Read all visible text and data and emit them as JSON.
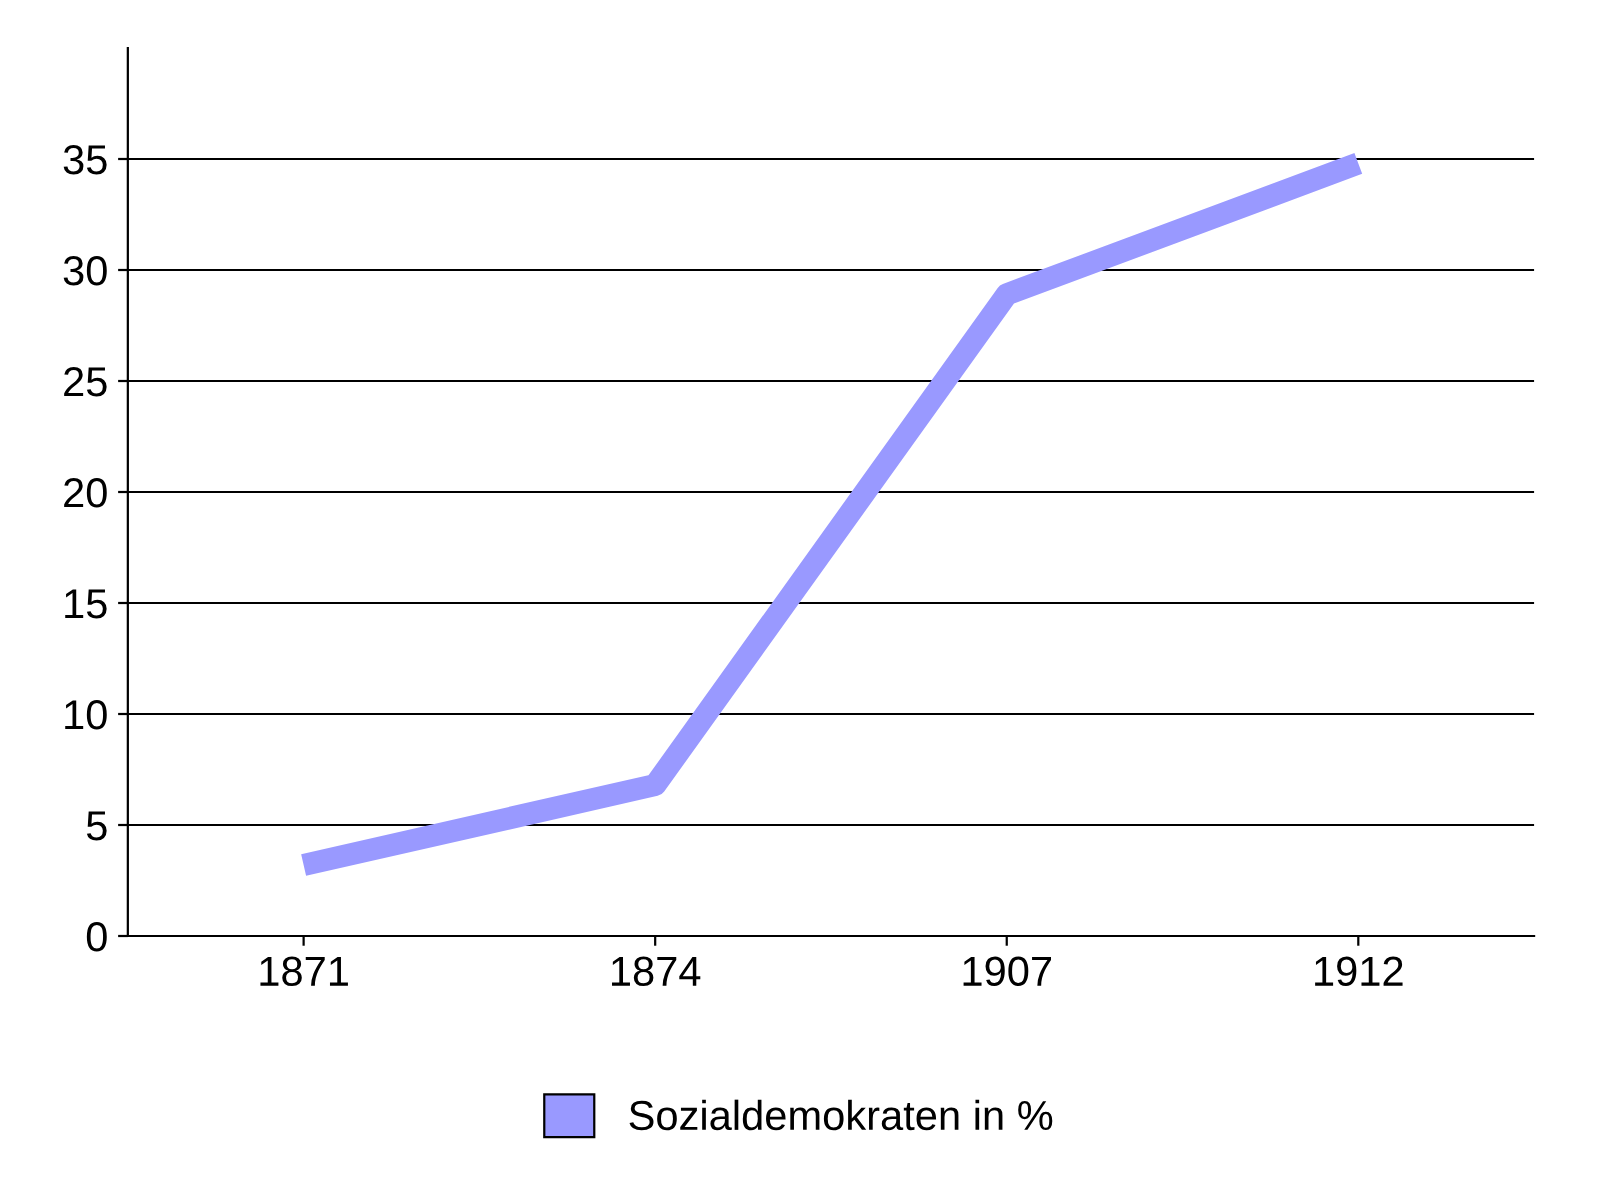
{
  "chart_data": {
    "type": "line",
    "categories": [
      "1871",
      "1874",
      "1907",
      "1912"
    ],
    "series": [
      {
        "name": "Sozialdemokraten in %",
        "color": "#9999ff",
        "values": [
          3.2,
          6.8,
          28.9,
          34.8
        ]
      }
    ],
    "ylim": [
      0,
      40
    ],
    "yticks": [
      0,
      5,
      10,
      15,
      20,
      25,
      30,
      35
    ],
    "grid": "y",
    "legend": "bottom",
    "marker": "none",
    "line_style": "solid"
  }
}
